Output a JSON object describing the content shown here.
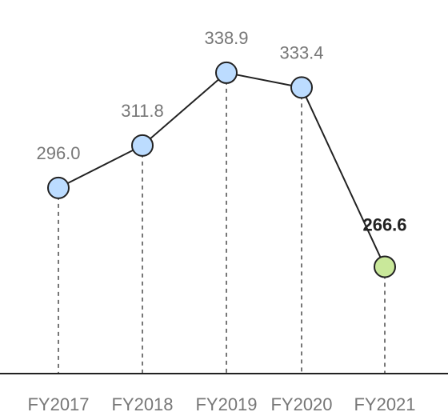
{
  "chart_data": {
    "type": "line",
    "categories": [
      "FY2017",
      "FY2018",
      "FY2019",
      "FY2020",
      "FY2021"
    ],
    "values": [
      296.0,
      311.8,
      338.9,
      333.4,
      266.6
    ],
    "value_labels": [
      "296.0",
      "311.8",
      "338.9",
      "333.4",
      "266.6"
    ],
    "highlight_index": 4,
    "title": "",
    "xlabel": "",
    "ylabel": "",
    "ylim": [
      211,
      366
    ],
    "grid": false,
    "legend": "none",
    "colors": {
      "point": "#bcdcff",
      "point_highlight": "#c9e89a",
      "point_stroke": "#222222",
      "line": "#222222",
      "dropline": "#777777",
      "axis": "#222222",
      "label": "#777777",
      "label_highlight": "#222222"
    }
  }
}
